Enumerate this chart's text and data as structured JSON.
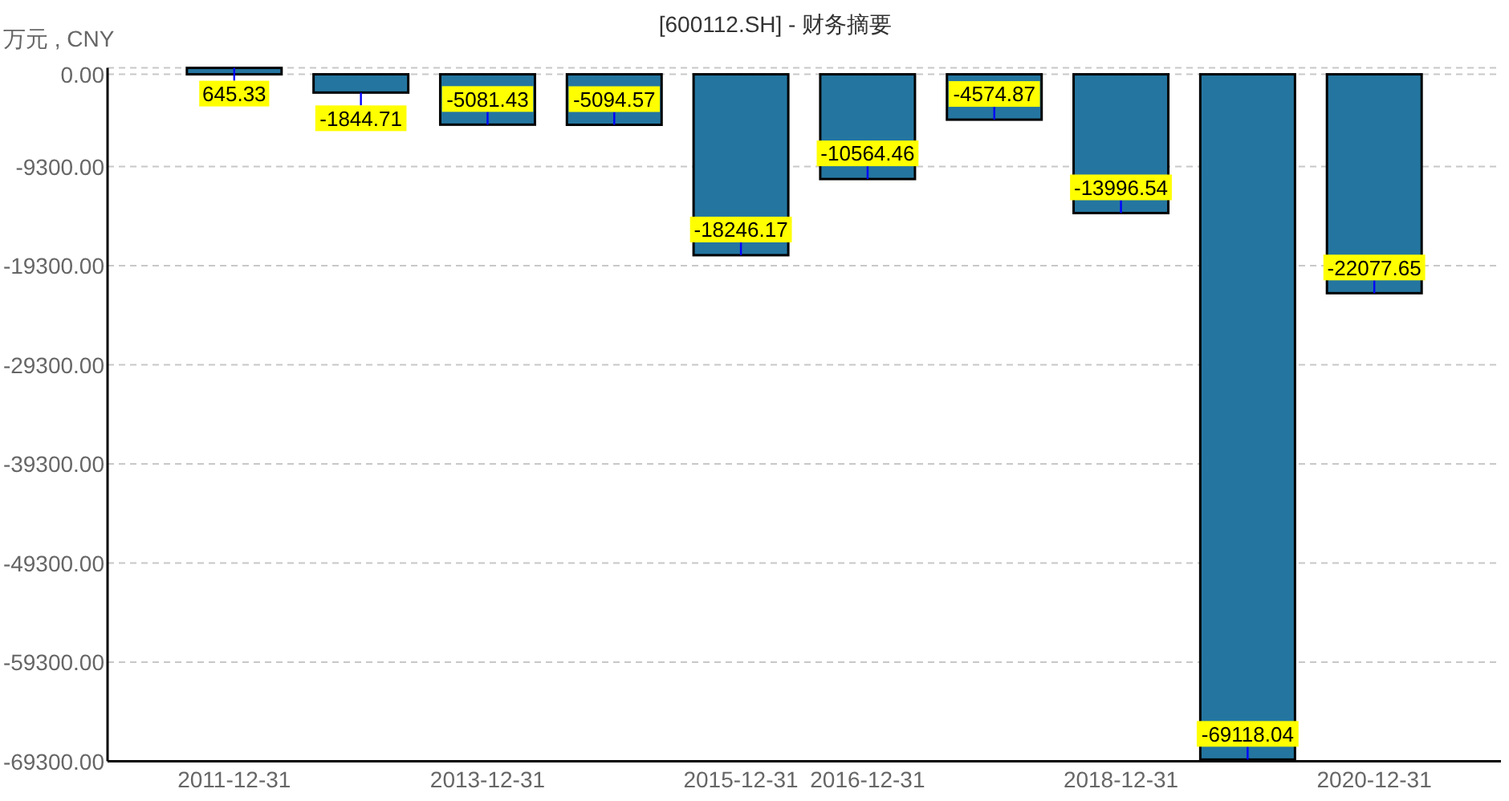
{
  "chart_data": {
    "type": "bar",
    "title": "[600112.SH] - 财务摘要",
    "ylabel": "万元 , CNY",
    "categories": [
      "2011-12-31",
      null,
      "2013-12-31",
      null,
      "2015-12-31",
      "2016-12-31",
      null,
      "2018-12-31",
      null,
      "2020-12-31"
    ],
    "values": [
      645.33,
      -1844.71,
      -5081.43,
      -5094.57,
      -18246.17,
      -10564.46,
      -4574.87,
      -13996.54,
      -69118.04,
      -22077.65
    ],
    "color": "#2476a0",
    "ylim": [
      -69300,
      645.33
    ],
    "yticks": [
      {
        "value": -69300,
        "label": "-69300.00"
      },
      {
        "value": -59300,
        "label": "-59300.00"
      },
      {
        "value": -49300,
        "label": "-49300.00"
      },
      {
        "value": -39300,
        "label": "-39300.00"
      },
      {
        "value": -29300,
        "label": "-29300.00"
      },
      {
        "value": -19300,
        "label": "-19300.00"
      },
      {
        "value": -9300,
        "label": "-9300.00"
      },
      {
        "value": 0,
        "label": "0.00"
      },
      {
        "value": 645.33,
        "label": null
      }
    ],
    "grid": "y",
    "data_labels": true
  }
}
